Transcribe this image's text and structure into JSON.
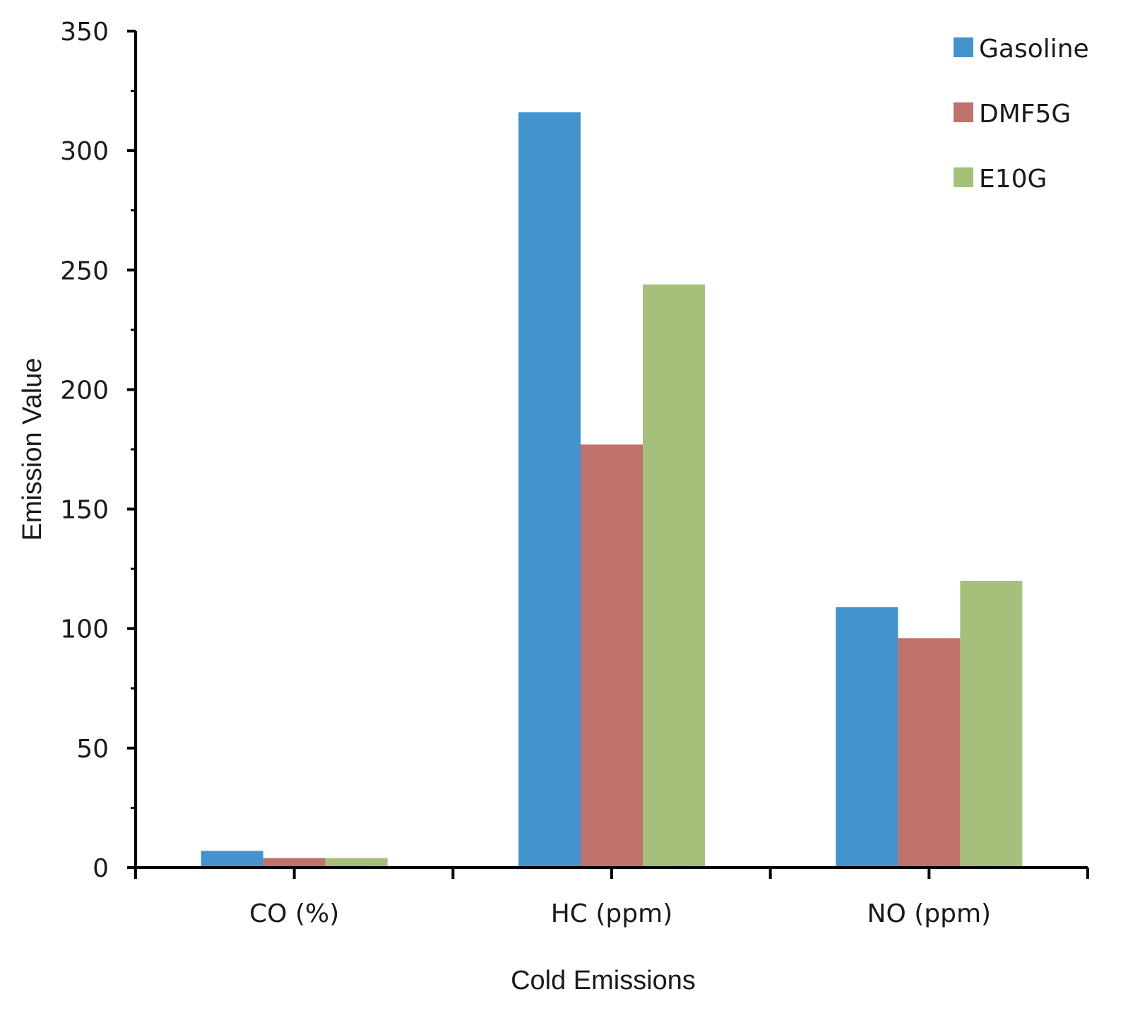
{
  "chart_data": {
    "type": "bar",
    "title": "",
    "xlabel": "Cold Emissions",
    "ylabel": "Emission Value",
    "categories": [
      "CO (%)",
      "HC (ppm)",
      "NO (ppm)"
    ],
    "series": [
      {
        "name": "Gasoline",
        "color": "#4393cf",
        "values": [
          7,
          316,
          109
        ]
      },
      {
        "name": "DMF5G",
        "color": "#c0716b",
        "values": [
          4,
          177,
          96
        ]
      },
      {
        "name": "E10G",
        "color": "#a5c07a",
        "values": [
          4,
          244,
          120
        ]
      }
    ],
    "ylim": [
      0,
      350
    ],
    "yticks": [
      0,
      50,
      100,
      150,
      200,
      250,
      300,
      350
    ],
    "grid": false,
    "legend_position": "top-right"
  }
}
